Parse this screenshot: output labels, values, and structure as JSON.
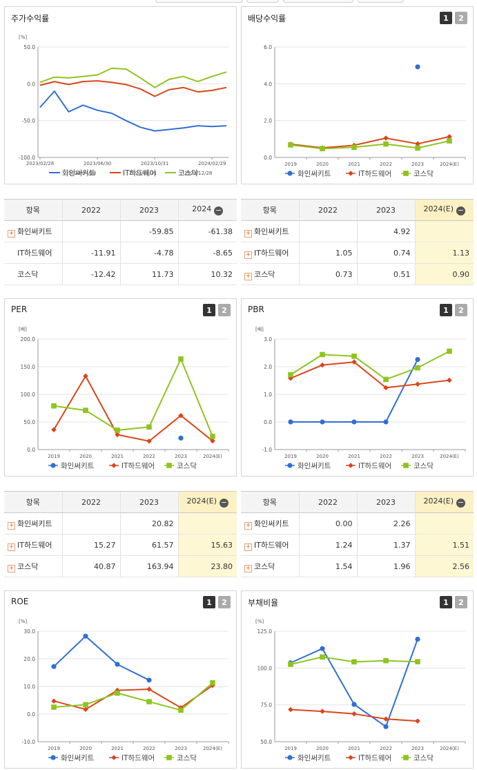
{
  "colors": {
    "s1": "#2f6fd6",
    "s2": "#d9461a",
    "s3": "#8ec41f"
  },
  "tabs": [
    "1",
    "2"
  ],
  "panels": {
    "stock": {
      "title": "주가수익률",
      "unit": "[%]"
    },
    "div": {
      "title": "배당수익률",
      "unit": ""
    },
    "per": {
      "title": "PER",
      "unit": "[배]"
    },
    "pbr": {
      "title": "PBR",
      "unit": "[배]"
    },
    "roe": {
      "title": "ROE",
      "unit": "[%]"
    },
    "debt": {
      "title": "부채비율",
      "unit": "[%]"
    }
  },
  "legend_overlap": [
    "2023/04/28",
    "2023/08/31",
    "2023/12/28"
  ],
  "chart_data": [
    {
      "id": "stock",
      "type": "line",
      "x": [
        "2023/02/28",
        "2023/03/31",
        "2023/04/28",
        "2023/05/31",
        "2023/06/30",
        "2023/07/31",
        "2023/08/31",
        "2023/09/27",
        "2023/10/31",
        "2023/11/30",
        "2023/12/28",
        "2024/01/31",
        "2024/02/29",
        "2024/03/29"
      ],
      "xticks": [
        "2023/02/28",
        "2023/06/30",
        "2023/10/31",
        "2024/02/29"
      ],
      "ylim": [
        -100,
        50
      ],
      "yticks": [
        "50.0",
        "0.0",
        "-50.0",
        "-100.0"
      ],
      "series": [
        {
          "name": "화인써키트",
          "values": [
            -32,
            -10,
            -38,
            -29,
            -36,
            -40,
            -50,
            -59,
            -64,
            -62,
            -60,
            -57,
            -58,
            -57
          ]
        },
        {
          "name": "IT하드웨어",
          "values": [
            -2,
            3,
            -1,
            3,
            4,
            2,
            -1,
            -7,
            -17,
            -8,
            -5,
            -11,
            -9,
            -5
          ]
        },
        {
          "name": "코스닥",
          "values": [
            2,
            9,
            8,
            10,
            12,
            21,
            20,
            8,
            -5,
            6,
            10,
            3,
            10,
            16
          ]
        }
      ]
    },
    {
      "id": "div",
      "type": "line",
      "categories": [
        "2019",
        "2020",
        "2021",
        "2022",
        "2023",
        "2024(E)"
      ],
      "ylim": [
        0,
        6
      ],
      "yticks": [
        "6.0",
        "4.0",
        "2.0",
        "0.0"
      ],
      "series": [
        {
          "name": "화인써키트",
          "values": [
            null,
            null,
            null,
            null,
            4.92,
            null
          ]
        },
        {
          "name": "IT하드웨어",
          "values": [
            0.72,
            0.52,
            0.66,
            1.05,
            0.74,
            1.13
          ]
        },
        {
          "name": "코스닥",
          "values": [
            0.68,
            0.48,
            0.55,
            0.73,
            0.51,
            0.9
          ]
        }
      ]
    },
    {
      "id": "per",
      "type": "line",
      "categories": [
        "2019",
        "2020",
        "2021",
        "2022",
        "2023",
        "2024(E)"
      ],
      "ylim": [
        0,
        200
      ],
      "yticks": [
        "200.0",
        "150.0",
        "100.0",
        "50.0",
        "0.0"
      ],
      "series": [
        {
          "name": "화인써키트",
          "values": [
            null,
            null,
            null,
            null,
            20.82,
            null
          ]
        },
        {
          "name": "IT하드웨어",
          "values": [
            36,
            133,
            27,
            15.27,
            61.57,
            15.63
          ]
        },
        {
          "name": "코스닥",
          "values": [
            79,
            71,
            35,
            40.87,
            163.94,
            23.8
          ]
        }
      ]
    },
    {
      "id": "pbr",
      "type": "line",
      "categories": [
        "2019",
        "2020",
        "2021",
        "2022",
        "2023",
        "2024(E)"
      ],
      "ylim": [
        -1,
        3
      ],
      "yticks": [
        "3.0",
        "2.0",
        "1.0",
        "0.0",
        "-1.0"
      ],
      "series": [
        {
          "name": "화인써키트",
          "values": [
            0.0,
            0.0,
            0.0,
            0.0,
            2.26,
            null
          ]
        },
        {
          "name": "IT하드웨어",
          "values": [
            1.58,
            2.06,
            2.17,
            1.24,
            1.37,
            1.51
          ]
        },
        {
          "name": "코스닥",
          "values": [
            1.71,
            2.44,
            2.38,
            1.54,
            1.96,
            2.56
          ]
        }
      ]
    },
    {
      "id": "roe",
      "type": "line",
      "categories": [
        "2019",
        "2020",
        "2021",
        "2022",
        "2023",
        "2024(E)"
      ],
      "ylim": [
        -10,
        30
      ],
      "yticks": [
        "30.0",
        "20.0",
        "10.0",
        "0.0",
        "-10.0"
      ],
      "series": [
        {
          "name": "화인써키트",
          "values": [
            17.2,
            28.2,
            18.0,
            12.3,
            null,
            null
          ]
        },
        {
          "name": "IT하드웨어",
          "values": [
            4.7,
            1.7,
            8.6,
            9.0,
            2.3,
            10.4
          ]
        },
        {
          "name": "코스닥",
          "values": [
            2.5,
            3.4,
            7.6,
            4.5,
            1.4,
            11.3
          ]
        }
      ]
    },
    {
      "id": "debt",
      "type": "line",
      "categories": [
        "2019",
        "2020",
        "2021",
        "2022",
        "2023",
        "2024(E)"
      ],
      "ylim": [
        50,
        125
      ],
      "yticks": [
        "125.0",
        "100.0",
        "75.0",
        "50.0"
      ],
      "series": [
        {
          "name": "화인써키트",
          "values": [
            103.5,
            113.2,
            75.3,
            60.2,
            119.6,
            null
          ]
        },
        {
          "name": "IT하드웨어",
          "values": [
            71.8,
            70.6,
            68.9,
            65.4,
            64.0,
            null
          ]
        },
        {
          "name": "코스닥",
          "values": [
            102.5,
            107.5,
            104.2,
            105.0,
            104.3,
            null
          ]
        }
      ]
    }
  ],
  "tables": {
    "stock": {
      "header": [
        "항목",
        "2022",
        "2023",
        "2024"
      ],
      "rows": [
        {
          "label": "화인써키트",
          "plus": true,
          "values": [
            "",
            "-59.85",
            "-61.38"
          ]
        },
        {
          "label": "IT하드웨어",
          "plus": false,
          "values": [
            "-11.91",
            "-4.78",
            "-8.65"
          ]
        },
        {
          "label": "코스닥",
          "plus": false,
          "values": [
            "-12.42",
            "11.73",
            "10.32"
          ]
        }
      ]
    },
    "div": {
      "header": [
        "항목",
        "2022",
        "2023",
        "2024(E)"
      ],
      "rows": [
        {
          "label": "화인써키트",
          "plus": true,
          "values": [
            "",
            "4.92",
            ""
          ]
        },
        {
          "label": "IT하드웨어",
          "plus": true,
          "values": [
            "1.05",
            "0.74",
            "1.13"
          ]
        },
        {
          "label": "코스닥",
          "plus": true,
          "values": [
            "0.73",
            "0.51",
            "0.90"
          ]
        }
      ]
    },
    "per": {
      "header": [
        "항목",
        "2022",
        "2023",
        "2024(E)"
      ],
      "rows": [
        {
          "label": "화인써키트",
          "plus": true,
          "values": [
            "",
            "20.82",
            ""
          ]
        },
        {
          "label": "IT하드웨어",
          "plus": true,
          "values": [
            "15.27",
            "61.57",
            "15.63"
          ]
        },
        {
          "label": "코스닥",
          "plus": true,
          "values": [
            "40.87",
            "163.94",
            "23.80"
          ]
        }
      ]
    },
    "pbr": {
      "header": [
        "항목",
        "2022",
        "2023",
        "2024(E)"
      ],
      "rows": [
        {
          "label": "화인써키트",
          "plus": true,
          "values": [
            "0.00",
            "2.26",
            ""
          ]
        },
        {
          "label": "IT하드웨어",
          "plus": true,
          "values": [
            "1.24",
            "1.37",
            "1.51"
          ]
        },
        {
          "label": "코스닥",
          "plus": true,
          "values": [
            "1.54",
            "1.96",
            "2.56"
          ]
        }
      ]
    }
  }
}
